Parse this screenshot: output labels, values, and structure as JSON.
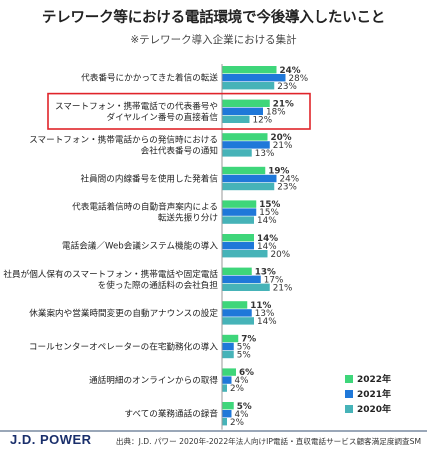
{
  "title": "テレワーク等における電話環境で今後導入したいこと",
  "subtitle": "※テレワーク導入企業における集計",
  "brand": "J.D. POWER",
  "source": "出典：J.D. パワー 2020年-2022年法人向けIP電話・直収電話サービス顧客満足度調査SM",
  "colors": {
    "s2022": "#3ed67a",
    "s2021": "#1f78d9",
    "s2020": "#46b3b8",
    "highlight": "#e0242a"
  },
  "chart_data": {
    "type": "bar",
    "orientation": "horizontal",
    "title": "テレワーク等における電話環境で今後導入したいこと",
    "subtitle": "※テレワーク導入企業における集計",
    "value_unit": "%",
    "categories": [
      [
        "代表番号にかかってきた着信の転送"
      ],
      [
        "スマートフォン・携帯電話での代表番号や",
        "ダイヤルイン番号の直接着信"
      ],
      [
        "スマートフォン・携帯電話からの発信時における",
        "会社代表番号の通知"
      ],
      [
        "社員間の内線番号を使用した発着信"
      ],
      [
        "代表電話着信時の自動音声案内による",
        "転送先振り分け"
      ],
      [
        "電話会議／Web会議システム機能の導入"
      ],
      [
        "社員が個人保有のスマートフォン・携帯電話や固定電話",
        "を使った際の通話料の会社負担"
      ],
      [
        "休業案内や営業時間変更の自動アナウンスの設定"
      ],
      [
        "コールセンターオペレーターの在宅勤務化の導入"
      ],
      [
        "通話明細のオンラインからの取得"
      ],
      [
        "すべての業務通話の録音"
      ]
    ],
    "series": [
      {
        "name": "2022年",
        "values": [
          24,
          21,
          20,
          19,
          15,
          14,
          13,
          11,
          7,
          6,
          5
        ]
      },
      {
        "name": "2021年",
        "values": [
          28,
          18,
          21,
          24,
          15,
          14,
          17,
          13,
          5,
          4,
          4
        ]
      },
      {
        "name": "2020年",
        "values": [
          23,
          12,
          13,
          23,
          14,
          20,
          21,
          14,
          5,
          2,
          2
        ]
      }
    ],
    "value_labels": [
      [
        "24%",
        "28%",
        "23%"
      ],
      [
        "21%",
        "18%",
        "12%"
      ],
      [
        "20%",
        "21%",
        "13%"
      ],
      [
        "19%",
        "24%",
        "23%"
      ],
      [
        "15%",
        "15%",
        "14%"
      ],
      [
        "14%",
        "14%",
        "20%"
      ],
      [
        "13%",
        "17%",
        "21%"
      ],
      [
        "11%",
        "13%",
        "14%"
      ],
      [
        "7%",
        "5%",
        "5%"
      ],
      [
        "6%",
        "4%",
        "2%"
      ],
      [
        "5%",
        "4%",
        "2%"
      ]
    ],
    "highlighted_category_index": 1,
    "legend": {
      "position": "bottom-right",
      "entries": [
        "2022年",
        "2021年",
        "2020年"
      ]
    },
    "grid": false
  }
}
